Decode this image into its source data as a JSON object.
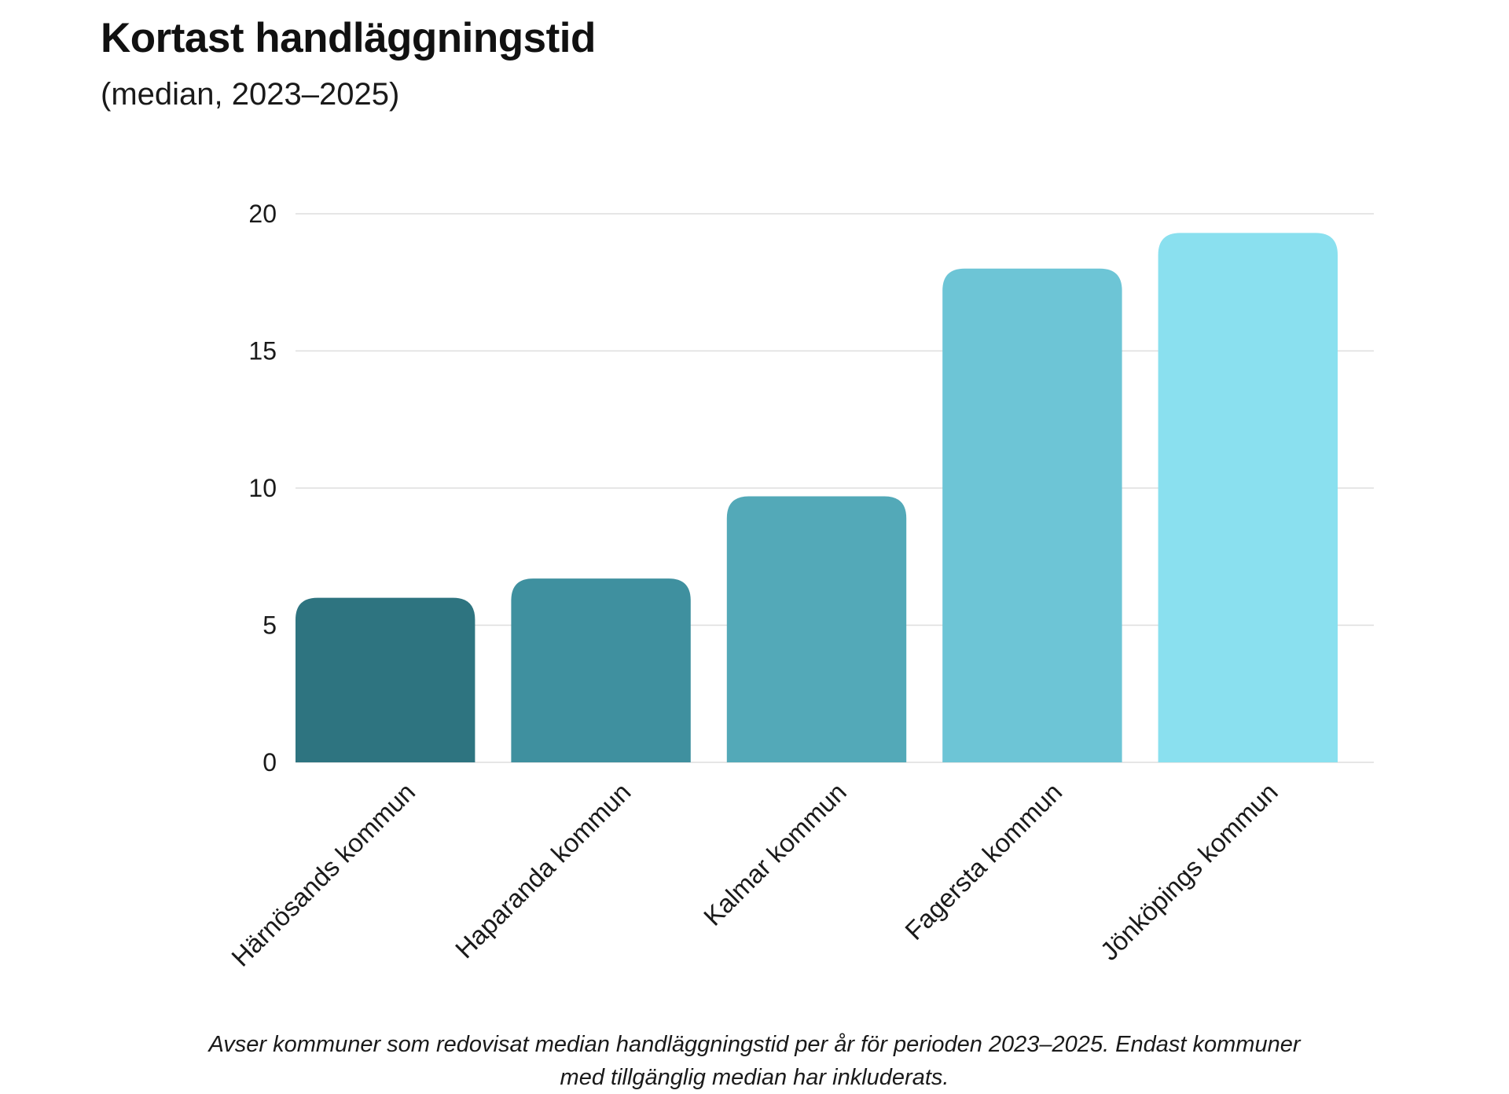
{
  "chart_data": {
    "type": "bar",
    "title": "Kortast handläggningstid",
    "subtitle": "(median, 2023–2025)",
    "categories": [
      "Härnösands kommun",
      "Haparanda kommun",
      "Kalmar kommun",
      "Fagersta kommun",
      "Jönköpings kommun"
    ],
    "values": [
      6.0,
      6.7,
      9.7,
      18.0,
      19.3
    ],
    "colors": [
      "#2e7480",
      "#3f909f",
      "#53a9b8",
      "#6dc5d6",
      "#8ae0ef"
    ],
    "ylim": [
      0,
      20
    ],
    "yticks": [
      "0",
      "5",
      "10",
      "15",
      "20"
    ],
    "ytick_values": [
      0,
      5,
      10,
      15,
      20
    ],
    "grid": true,
    "xlabel": "",
    "ylabel": "",
    "footnote": "Avser kommuner som redovisat median handläggningstid per år för perioden 2023–2025. Endast kommuner med tillgänglig median har inkluderats."
  }
}
